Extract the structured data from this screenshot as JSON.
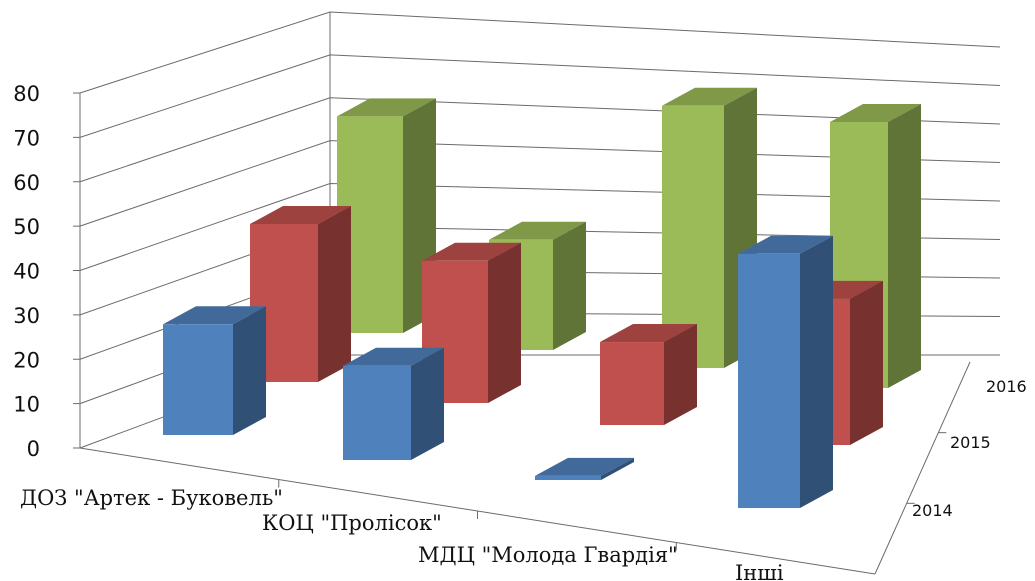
{
  "chart_data": {
    "type": "bar",
    "subtype": "3d-column",
    "categories": [
      "ДОЗ \"Артек - Буковель\"",
      "КОЦ \"Пролісок\"",
      "МДЦ \"Молода Гвардія\"",
      "Інші"
    ],
    "series": [
      {
        "name": "2014",
        "values": [
          27,
          23,
          1,
          62
        ],
        "color": "#4F81BD"
      },
      {
        "name": "2015",
        "values": [
          40,
          36,
          21,
          37
        ],
        "color": "#C0504D"
      },
      {
        "name": "2016",
        "values": [
          57,
          29,
          69,
          70
        ],
        "color": "#9BBB59"
      }
    ],
    "yticks": [
      "0",
      "10",
      "20",
      "30",
      "40",
      "50",
      "60",
      "70",
      "80"
    ],
    "ylim": [
      0,
      80
    ],
    "grid": true,
    "title": "",
    "xlabel": "",
    "ylabel": ""
  }
}
